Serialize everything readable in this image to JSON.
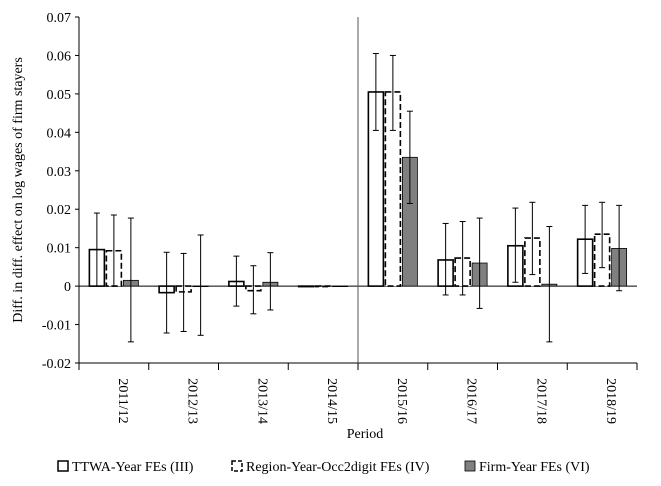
{
  "chart_data": {
    "type": "bar",
    "ylabel": "Diff. in diff. effect on log wages of firm stayers",
    "xlabel": "Period",
    "ylim": [
      -0.02,
      0.07
    ],
    "ytick_step": 0.01,
    "yticks": [
      "-0.02",
      "-0.01",
      "0",
      "0.01",
      "0.02",
      "0.03",
      "0.04",
      "0.05",
      "0.06",
      "0.07"
    ],
    "categories": [
      "2011/12",
      "2012/13",
      "2013/14",
      "2014/15",
      "2015/16",
      "2016/17",
      "2017/18",
      "2018/19"
    ],
    "vertical_divider_after_category": "2014/15",
    "grid": false,
    "legend_position": "bottom",
    "series": [
      {
        "name": "TTWA-Year FEs (III)",
        "style": "solid-outline",
        "fill": "#ffffff",
        "stroke": "#000000",
        "values": [
          0.0095,
          -0.0017,
          0.0012,
          0.0,
          0.0505,
          0.0068,
          0.0105,
          0.0122
        ],
        "ci_low": [
          0.0,
          -0.0122,
          -0.0052,
          0.0,
          0.0405,
          -0.0023,
          0.001,
          0.0033
        ],
        "ci_high": [
          0.019,
          0.0088,
          0.0078,
          0.0,
          0.0605,
          0.0163,
          0.0203,
          0.021
        ]
      },
      {
        "name": "Region-Year-Occ2digit FEs (IV)",
        "style": "dashed-outline",
        "fill": "#ffffff",
        "stroke": "#000000",
        "values": [
          0.0092,
          -0.0015,
          -0.0012,
          0.0,
          0.0505,
          0.0073,
          0.0125,
          0.0135
        ],
        "ci_low": [
          0.0,
          -0.0118,
          -0.0072,
          0.0,
          0.0405,
          -0.0023,
          0.003,
          0.0048
        ],
        "ci_high": [
          0.0185,
          0.0085,
          0.0053,
          0.0,
          0.06,
          0.0168,
          0.0218,
          0.0218
        ]
      },
      {
        "name": "Firm-Year FEs (VI)",
        "style": "solid-fill",
        "fill": "#808080",
        "stroke": "#000000",
        "values": [
          0.0015,
          0.0,
          0.001,
          0.0,
          0.0335,
          0.006,
          0.0005,
          0.0098
        ],
        "ci_low": [
          -0.0145,
          -0.0128,
          -0.0062,
          0.0,
          0.0215,
          -0.0058,
          -0.0145,
          -0.0012
        ],
        "ci_high": [
          0.0177,
          0.0133,
          0.0087,
          0.0,
          0.0455,
          0.0177,
          0.0155,
          0.021
        ]
      }
    ]
  }
}
